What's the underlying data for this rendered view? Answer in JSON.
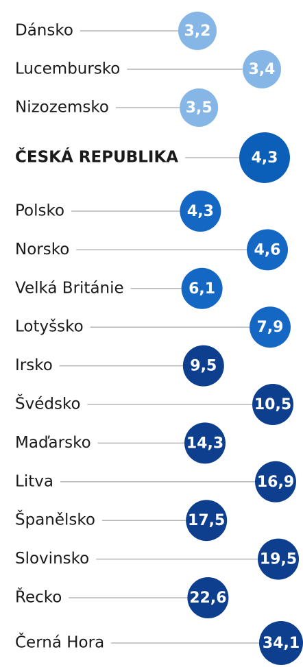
{
  "chart_data": {
    "type": "bubble",
    "categories": [
      "Dánsko",
      "Lucembursko",
      "Nizozemsko",
      "ČESKÁ REPUBLIKA",
      "Polsko",
      "Norsko",
      "Velká Británie",
      "Lotyšsko",
      "Irsko",
      "Švédsko",
      "Maďarsko",
      "Litva",
      "Španělsko",
      "Slovinsko",
      "Řecko",
      "Černá Hora"
    ],
    "values": [
      3.2,
      3.4,
      3.5,
      4.3,
      4.3,
      4.6,
      6.1,
      7.9,
      9.5,
      10.5,
      14.3,
      16.9,
      17.5,
      19.5,
      22.6,
      34.1
    ],
    "value_labels": [
      "3,2",
      "3,4",
      "3,5",
      "4,3",
      "4,3",
      "4,6",
      "6,1",
      "7,9",
      "9,5",
      "10,5",
      "14,3",
      "16,9",
      "17,5",
      "19,5",
      "22,6",
      "34,1"
    ],
    "colors": [
      "#86b6e6",
      "#86b6e6",
      "#86b6e6",
      "#0b5fb8",
      "#1567c4",
      "#1567c4",
      "#1567c4",
      "#1567c4",
      "#0e3f8e",
      "#0e3f8e",
      "#0e3f8e",
      "#0e3f8e",
      "#0e3f8e",
      "#0e3f8e",
      "#0e3f8e",
      "#0e3f8e"
    ]
  }
}
